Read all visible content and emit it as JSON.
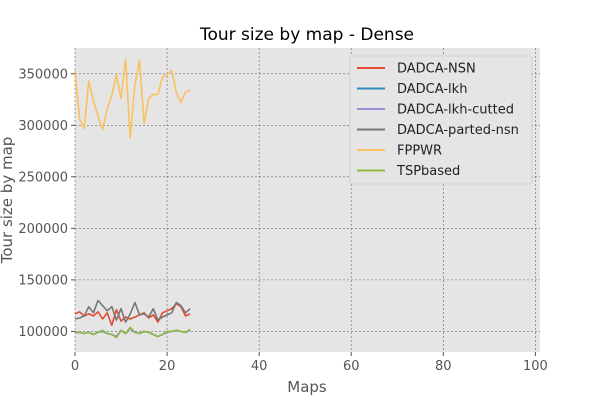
{
  "chart_data": {
    "type": "line",
    "title": "Tour size by map - Dense",
    "xlabel": "Maps",
    "ylabel": "Tour size by map",
    "xlim": [
      0,
      101
    ],
    "ylim": [
      80000,
      375000
    ],
    "xticks": [
      0,
      20,
      40,
      60,
      80,
      100
    ],
    "yticks": [
      100000,
      150000,
      200000,
      250000,
      300000,
      350000
    ],
    "xtick_labels": [
      "0",
      "20",
      "40",
      "60",
      "80",
      "100"
    ],
    "ytick_labels": [
      "100000",
      "150000",
      "200000",
      "250000",
      "300000",
      "350000"
    ],
    "grid": true,
    "legend_position": "top-right",
    "x": [
      0,
      1,
      2,
      3,
      4,
      5,
      6,
      7,
      8,
      9,
      10,
      11,
      12,
      13,
      14,
      15,
      16,
      17,
      18,
      19,
      20,
      21,
      22,
      23,
      24,
      25
    ],
    "series": [
      {
        "name": "DADCA-NSN",
        "color": "#e24a33",
        "values": [
          117000,
          119000,
          115000,
          117000,
          115000,
          119000,
          112000,
          118000,
          106000,
          121000,
          110000,
          114000,
          112000,
          114000,
          116000,
          118000,
          113000,
          116000,
          109000,
          118000,
          120000,
          122000,
          127000,
          124000,
          115000,
          117000
        ]
      },
      {
        "name": "DADCA-lkh",
        "color": "#348abd",
        "values": [
          99000,
          99000,
          98000,
          99000,
          97000,
          99000,
          100000,
          98000,
          97000,
          95000,
          101000,
          98000,
          103000,
          99000,
          98000,
          100000,
          99000,
          97000,
          95000,
          97000,
          99000,
          100000,
          101000,
          100000,
          99000,
          101000
        ]
      },
      {
        "name": "DADCA-lkh-cutted",
        "color": "#988ed5",
        "values": [
          99000,
          99000,
          98000,
          99000,
          97000,
          99000,
          101000,
          98000,
          97000,
          95000,
          101000,
          98000,
          103000,
          99000,
          98000,
          100000,
          99000,
          97000,
          95000,
          97000,
          99000,
          100000,
          101000,
          100000,
          99000,
          101000
        ]
      },
      {
        "name": "DADCA-parted-nsn",
        "color": "#777777",
        "values": [
          112000,
          113000,
          115000,
          124000,
          118000,
          130000,
          125000,
          120000,
          124000,
          111000,
          122000,
          109000,
          117000,
          128000,
          116000,
          117000,
          114000,
          122000,
          111000,
          114000,
          116000,
          118000,
          128000,
          125000,
          118000,
          122000
        ]
      },
      {
        "name": "FPPWR",
        "color": "#fbc15e",
        "values": [
          353000,
          306000,
          297000,
          343000,
          324000,
          309000,
          296000,
          316000,
          329000,
          349000,
          326000,
          364000,
          288000,
          339000,
          363000,
          302000,
          326000,
          330000,
          330000,
          347000,
          349000,
          353000,
          332000,
          322000,
          332000,
          334000
        ]
      },
      {
        "name": "TSPbased",
        "color": "#8eba42",
        "values": [
          99000,
          99000,
          98000,
          99000,
          97000,
          99000,
          101000,
          98000,
          97000,
          94000,
          101000,
          98000,
          104000,
          99000,
          98000,
          100000,
          99000,
          97000,
          95000,
          97000,
          100000,
          100000,
          101000,
          100000,
          99000,
          102000
        ]
      }
    ]
  }
}
